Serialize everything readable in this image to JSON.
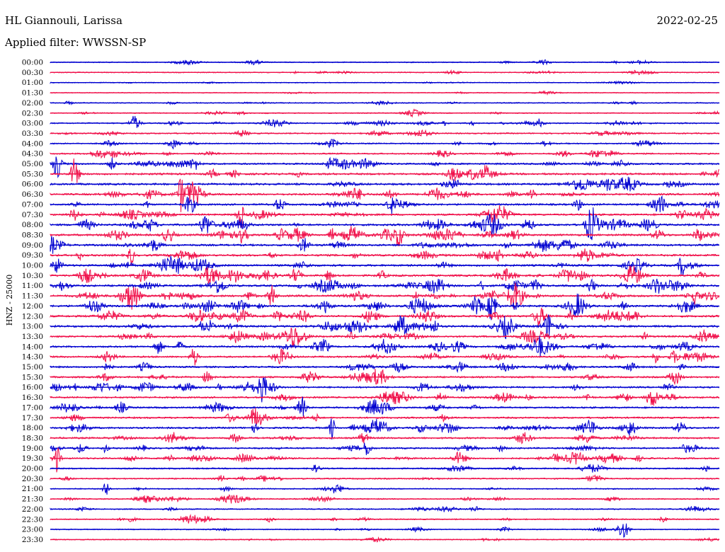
{
  "header": {
    "station": "HL Giannouli, Larissa",
    "filter": "Applied filter: WWSSN-SP",
    "date": "2022-02-25"
  },
  "chart_data": {
    "type": "line",
    "title": "HL Giannouli, Larissa",
    "subtitle": "Applied filter: WWSSN-SP",
    "date": "2022-02-25",
    "ylabel": "HNZ - 25000",
    "rows": [
      "00:00",
      "00:30",
      "01:00",
      "01:30",
      "02:00",
      "02:30",
      "03:00",
      "03:30",
      "04:00",
      "04:30",
      "05:00",
      "05:30",
      "06:00",
      "06:30",
      "07:00",
      "07:30",
      "08:00",
      "08:30",
      "09:00",
      "09:30",
      "10:00",
      "10:30",
      "11:00",
      "11:30",
      "12:00",
      "12:30",
      "13:00",
      "13:30",
      "14:00",
      "14:30",
      "15:00",
      "15:30",
      "16:00",
      "16:30",
      "17:00",
      "17:30",
      "18:00",
      "18:30",
      "19:00",
      "19:30",
      "20:00",
      "20:30",
      "21:00",
      "21:30",
      "22:00",
      "22:30",
      "23:00",
      "23:30"
    ],
    "activity": [
      0.3,
      0.3,
      0.2,
      0.2,
      0.3,
      0.3,
      0.5,
      0.5,
      0.5,
      0.6,
      0.8,
      1.0,
      1.0,
      0.9,
      0.9,
      0.9,
      1.0,
      1.0,
      1.0,
      1.0,
      1.0,
      1.0,
      1.0,
      1.0,
      1.0,
      1.0,
      1.0,
      0.9,
      0.9,
      0.8,
      0.8,
      0.8,
      0.8,
      0.8,
      0.8,
      0.8,
      0.8,
      0.8,
      0.7,
      0.7,
      0.6,
      0.5,
      0.4,
      0.4,
      0.4,
      0.4,
      0.3,
      0.3
    ],
    "colors": [
      "#0000d0",
      "#f0104a"
    ],
    "grid": false
  }
}
